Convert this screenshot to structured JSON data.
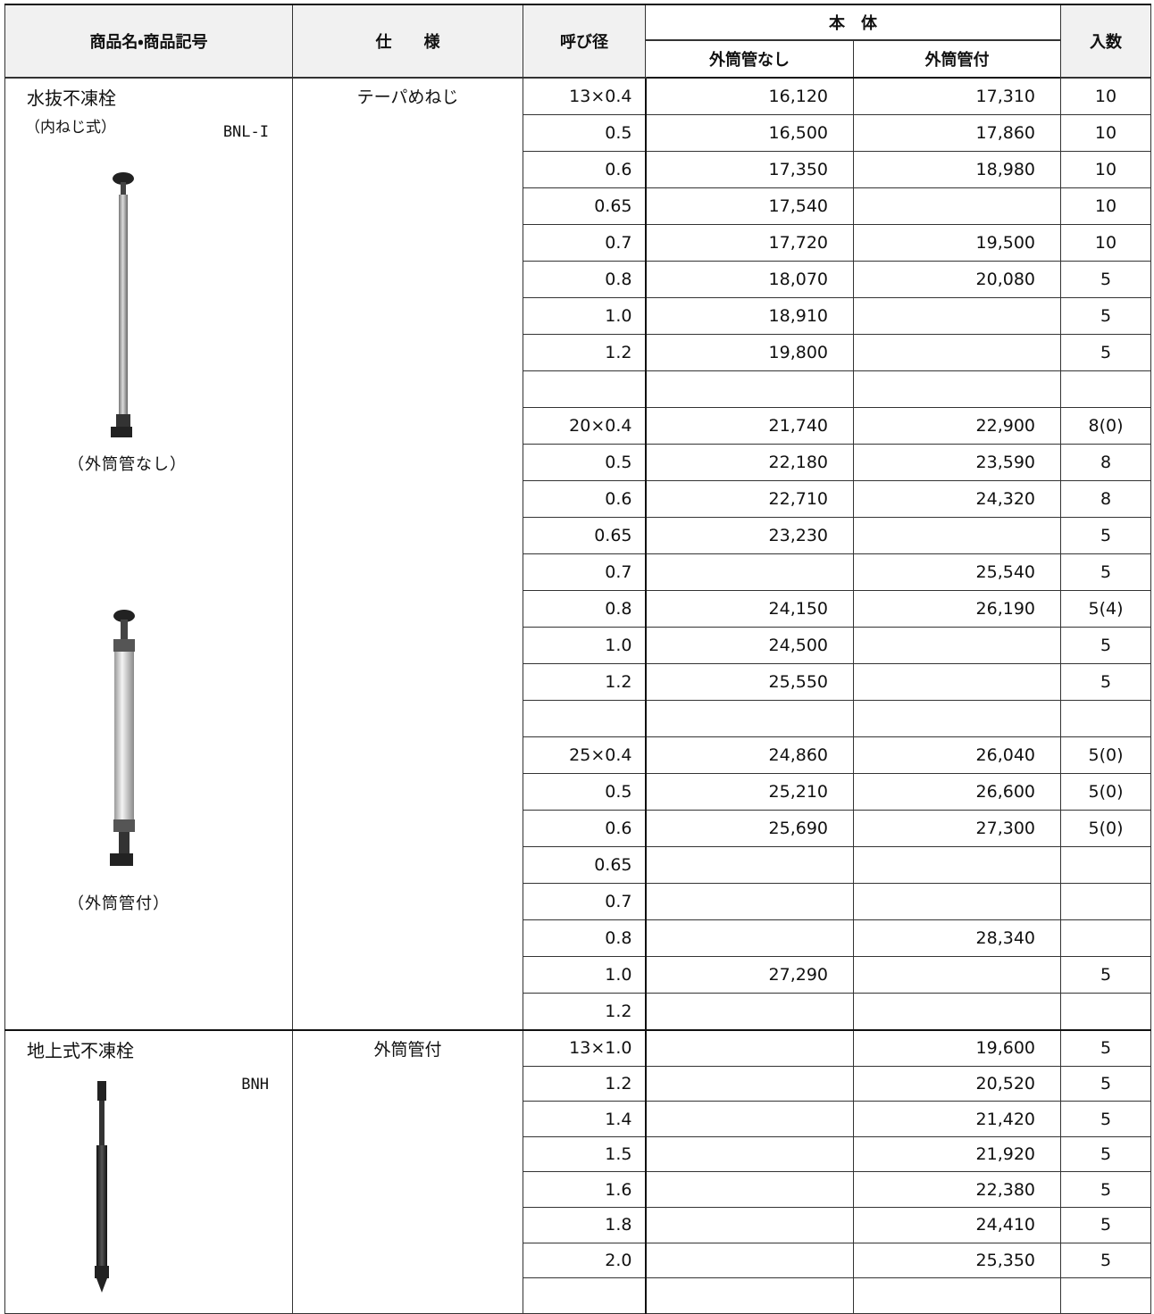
{
  "header": {
    "product": "商品名・商品記号",
    "spec": "仕　　様",
    "size": "呼び径",
    "body": "本　体",
    "without": "外筒管なし",
    "with": "外筒管付",
    "qty": "入数"
  },
  "sections": [
    {
      "name": "水抜不凍栓",
      "sub": "（内ねじ式）",
      "code": "BNL-I",
      "spec": "テーパめねじ",
      "captions": [
        "（外筒管なし）",
        "（外筒管付）"
      ],
      "rows": [
        [
          "13×0.4",
          "16,120",
          "17,310",
          "10"
        ],
        [
          "0.5",
          "16,500",
          "17,860",
          "10"
        ],
        [
          "0.6",
          "17,350",
          "18,980",
          "10"
        ],
        [
          "0.65",
          "17,540",
          null,
          "10"
        ],
        [
          "0.7",
          "17,720",
          "19,500",
          "10"
        ],
        [
          "0.8",
          "18,070",
          "20,080",
          "5"
        ],
        [
          "1.0",
          "18,910",
          null,
          "5"
        ],
        [
          "1.2",
          "19,800",
          null,
          "5"
        ],
        [
          null,
          null,
          null,
          null
        ],
        [
          "20×0.4",
          "21,740",
          "22,900",
          "8(0)"
        ],
        [
          "0.5",
          "22,180",
          "23,590",
          "8"
        ],
        [
          "0.6",
          "22,710",
          "24,320",
          "8"
        ],
        [
          "0.65",
          "23,230",
          null,
          "5"
        ],
        [
          "0.7",
          null,
          "25,540",
          "5"
        ],
        [
          "0.8",
          "24,150",
          "26,190",
          "5(4)"
        ],
        [
          "1.0",
          "24,500",
          null,
          "5"
        ],
        [
          "1.2",
          "25,550",
          null,
          "5"
        ],
        [
          null,
          null,
          null,
          null
        ],
        [
          "25×0.4",
          "24,860",
          "26,040",
          "5(0)"
        ],
        [
          "0.5",
          "25,210",
          "26,600",
          "5(0)"
        ],
        [
          "0.6",
          "25,690",
          "27,300",
          "5(0)"
        ],
        [
          "0.65",
          null,
          null,
          null
        ],
        [
          "0.7",
          null,
          null,
          null
        ],
        [
          "0.8",
          null,
          "28,340",
          null
        ],
        [
          "1.0",
          "27,290",
          null,
          "5"
        ],
        [
          "1.2",
          null,
          null,
          null
        ]
      ]
    },
    {
      "name": "地上式不凍栓",
      "code": "BNH",
      "spec": "外筒管付",
      "rows": [
        [
          "13×1.0",
          null,
          "19,600",
          "5"
        ],
        [
          "1.2",
          null,
          "20,520",
          "5"
        ],
        [
          "1.4",
          null,
          "21,420",
          "5"
        ],
        [
          "1.5",
          null,
          "21,920",
          "5"
        ],
        [
          "1.6",
          null,
          "22,380",
          "5"
        ],
        [
          "1.8",
          null,
          "24,410",
          "5"
        ],
        [
          "2.0",
          null,
          "25,350",
          "5"
        ],
        [
          null,
          null,
          null,
          null
        ]
      ]
    }
  ]
}
